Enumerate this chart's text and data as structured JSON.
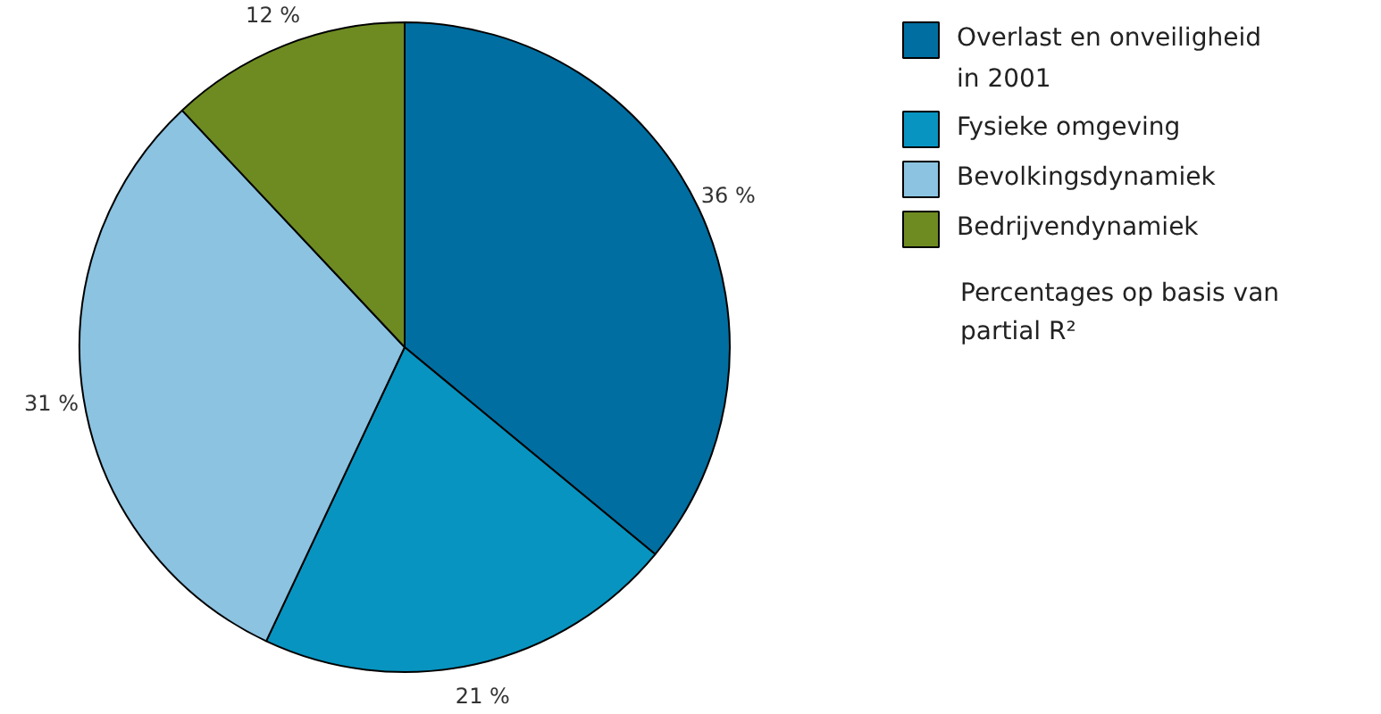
{
  "chart_data": {
    "type": "pie",
    "categories": [
      "Overlast en onveiligheid in 2001",
      "Fysieke omgeving",
      "Bevolkingsdynamiek",
      "Bedrijvendynamiek"
    ],
    "values": [
      36,
      21,
      31,
      12
    ],
    "colors": [
      "#006ea0",
      "#0894c0",
      "#8bc3e1",
      "#6e8b22"
    ],
    "value_labels": [
      "36 %",
      "21 %",
      "31 %",
      "12 %"
    ],
    "legend": "right",
    "annotations": [
      "Percentages op basis van partial R²"
    ]
  }
}
